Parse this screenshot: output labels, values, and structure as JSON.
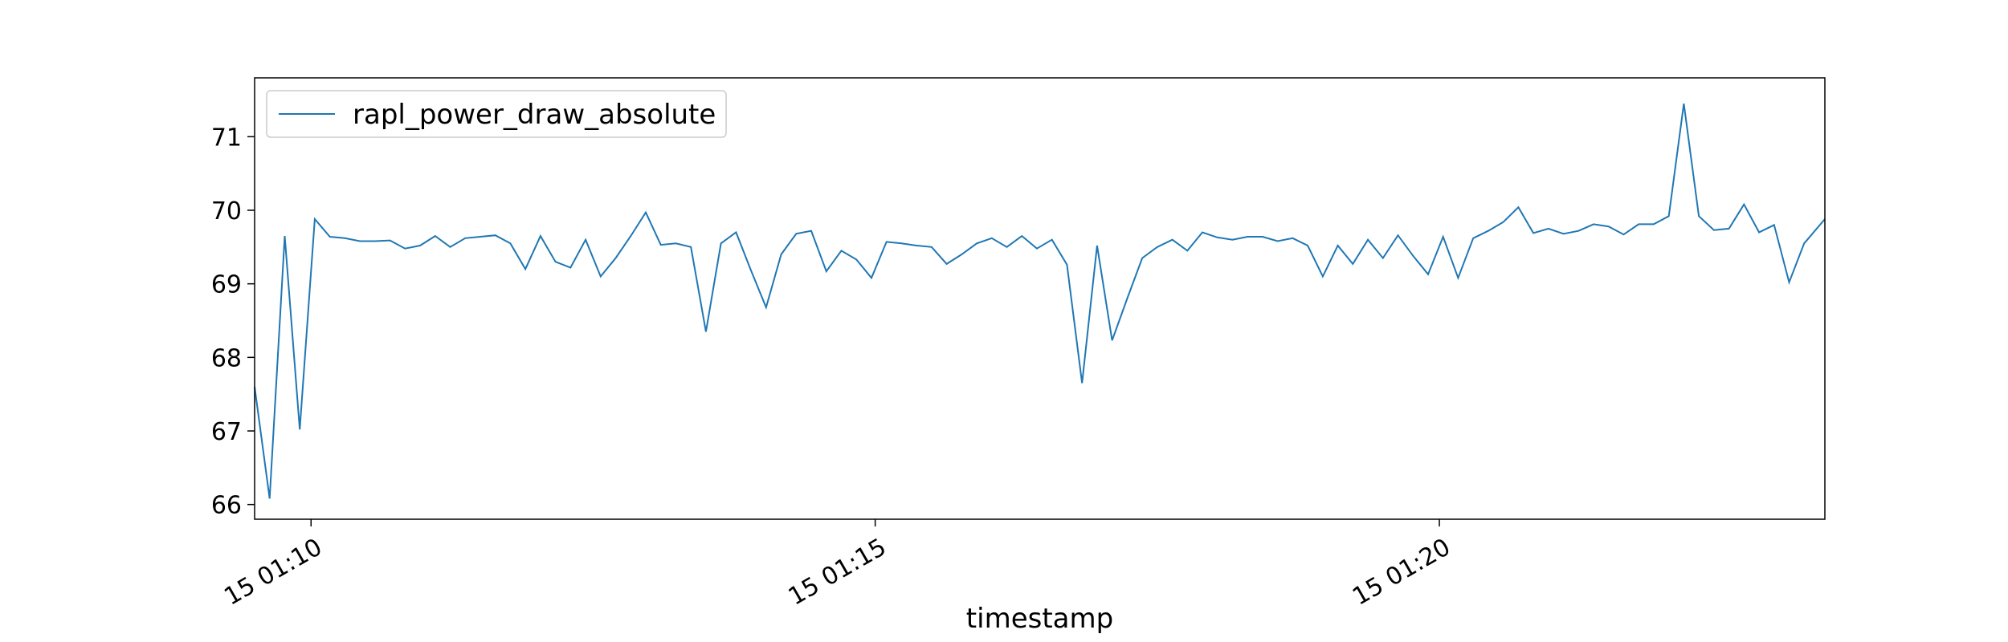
{
  "chart_data": {
    "type": "line",
    "title": "",
    "xlabel": "timestamp",
    "ylabel": "",
    "x_ticks": [
      "15 01:10",
      "15 01:15",
      "15 01:20"
    ],
    "y_ticks": [
      66,
      67,
      68,
      69,
      70,
      71
    ],
    "ylim": [
      65.8,
      71.8
    ],
    "xlim": [
      "01:09:30",
      "01:23:25"
    ],
    "grid": false,
    "legend_position": "top-left",
    "series": [
      {
        "name": "rapl_power_draw_absolute",
        "color": "#1f77b4",
        "x": [
          "01:09:30",
          "01:09:38",
          "01:09:46",
          "01:09:54",
          "01:10:02",
          "01:10:10",
          "01:10:18",
          "01:10:26",
          "01:10:34",
          "01:10:42",
          "01:10:50",
          "01:10:58",
          "01:11:06",
          "01:11:14",
          "01:11:22",
          "01:11:30",
          "01:11:38",
          "01:11:46",
          "01:11:54",
          "01:12:02",
          "01:12:10",
          "01:12:18",
          "01:12:26",
          "01:12:34",
          "01:12:42",
          "01:12:50",
          "01:12:58",
          "01:13:06",
          "01:13:14",
          "01:13:22",
          "01:13:30",
          "01:13:38",
          "01:13:46",
          "01:13:54",
          "01:14:02",
          "01:14:10",
          "01:14:18",
          "01:14:26",
          "01:14:34",
          "01:14:42",
          "01:14:50",
          "01:14:58",
          "01:15:06",
          "01:15:14",
          "01:15:22",
          "01:15:30",
          "01:15:38",
          "01:15:46",
          "01:15:54",
          "01:16:02",
          "01:16:10",
          "01:16:18",
          "01:16:26",
          "01:16:34",
          "01:16:42",
          "01:16:50",
          "01:16:58",
          "01:17:06",
          "01:17:14",
          "01:17:22",
          "01:17:30",
          "01:17:38",
          "01:17:46",
          "01:17:54",
          "01:18:02",
          "01:18:10",
          "01:18:18",
          "01:18:26",
          "01:18:34",
          "01:18:42",
          "01:18:50",
          "01:18:58",
          "01:19:06",
          "01:19:14",
          "01:19:22",
          "01:19:30",
          "01:19:38",
          "01:19:46",
          "01:19:54",
          "01:20:02",
          "01:20:10",
          "01:20:18",
          "01:20:26",
          "01:20:34",
          "01:20:42",
          "01:20:50",
          "01:20:58",
          "01:21:06",
          "01:21:14",
          "01:21:22",
          "01:21:30",
          "01:21:38",
          "01:21:46",
          "01:21:54",
          "01:22:02",
          "01:22:10",
          "01:22:18",
          "01:22:26",
          "01:22:34",
          "01:22:42",
          "01:22:50",
          "01:22:58",
          "01:23:06",
          "01:23:14",
          "01:23:25"
        ],
        "y": [
          67.6,
          66.08,
          69.65,
          67.02,
          69.88,
          69.64,
          69.62,
          69.58,
          69.58,
          69.59,
          69.48,
          69.52,
          69.65,
          69.5,
          69.62,
          69.64,
          69.66,
          69.55,
          69.2,
          69.65,
          69.3,
          69.22,
          69.6,
          69.1,
          69.35,
          69.65,
          69.97,
          69.53,
          69.55,
          69.5,
          68.35,
          69.55,
          69.7,
          69.18,
          68.68,
          69.4,
          69.68,
          69.72,
          69.17,
          69.45,
          69.33,
          69.08,
          69.57,
          69.55,
          69.52,
          69.5,
          69.27,
          69.4,
          69.55,
          69.62,
          69.5,
          69.65,
          69.48,
          69.6,
          69.26,
          67.65,
          69.52,
          68.23,
          68.8,
          69.35,
          69.5,
          69.6,
          69.45,
          69.7,
          69.63,
          69.6,
          69.64,
          69.64,
          69.58,
          69.62,
          69.52,
          69.1,
          69.52,
          69.27,
          69.6,
          69.35,
          69.66,
          69.38,
          69.13,
          69.64,
          69.08,
          69.62,
          69.72,
          69.84,
          70.04,
          69.69,
          69.75,
          69.68,
          69.72,
          69.81,
          69.78,
          69.67,
          69.81,
          69.81,
          69.92,
          71.45,
          69.92,
          69.73,
          69.75,
          70.08,
          69.7,
          69.8,
          69.02,
          69.55,
          69.88
        ]
      }
    ]
  }
}
